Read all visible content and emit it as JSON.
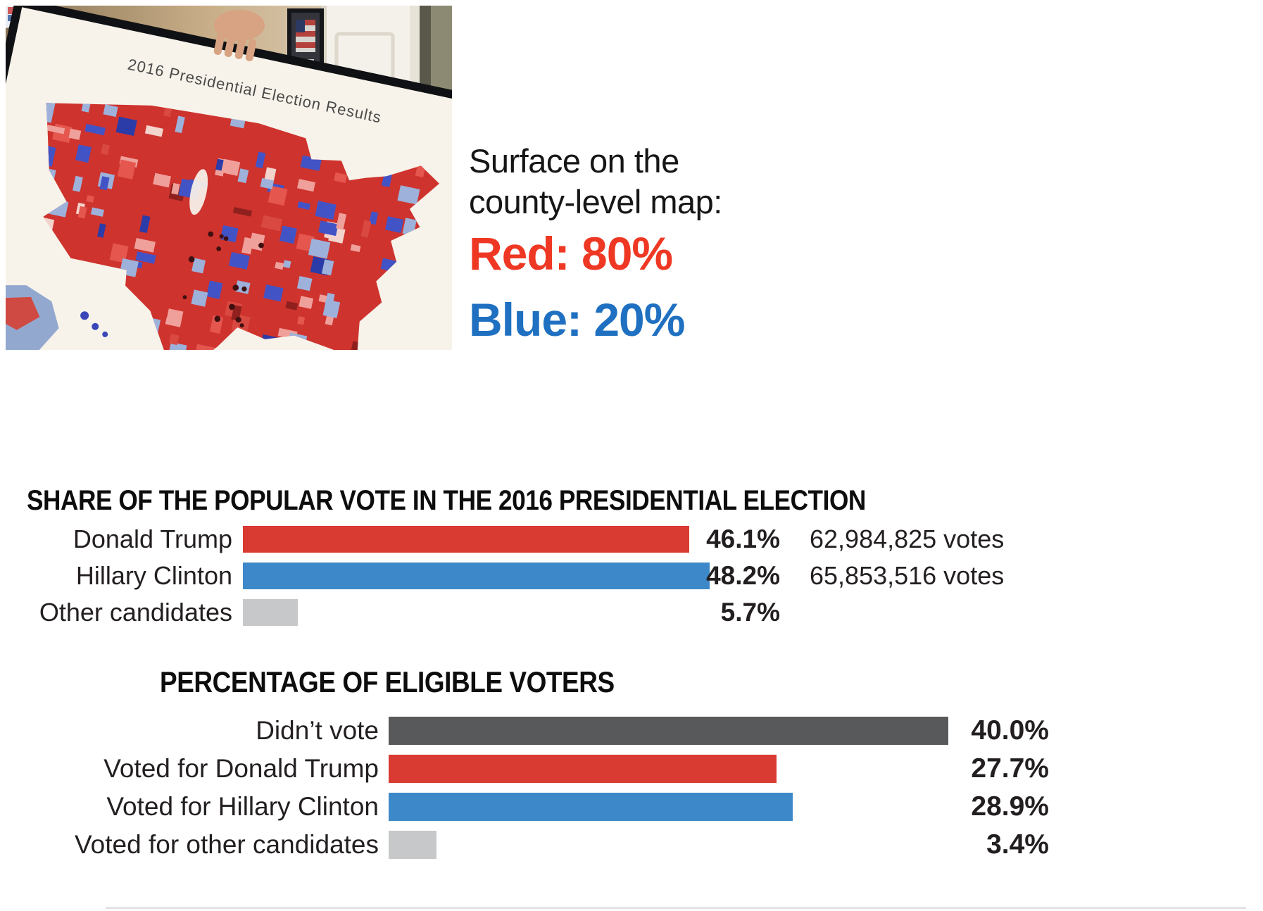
{
  "photo": {
    "poster_title": "2016 Presidential Election Results"
  },
  "annotation": {
    "line1": "Surface on the",
    "line2": "county-level map:",
    "red_label": "Red: 80%",
    "blue_label": "Blue: 20%",
    "red_color": "#ee3824",
    "blue_color": "#1f70c1"
  },
  "chart_data": [
    {
      "type": "bar",
      "orientation": "horizontal",
      "title": "SHARE OF THE POPULAR VOTE IN THE 2016 PRESIDENTIAL ELECTION",
      "categories": [
        "Donald Trump",
        "Hillary Clinton",
        "Other candidates"
      ],
      "values": [
        46.1,
        48.2,
        5.7
      ],
      "value_labels": [
        "46.1%",
        "48.2%",
        "5.7%"
      ],
      "extra_labels": [
        "62,984,825 votes",
        "65,853,516 votes",
        ""
      ],
      "bar_colors": [
        "#d93a32",
        "#3c88c8",
        "#c7c8ca"
      ],
      "xlim": [
        0,
        50
      ],
      "grid": false,
      "legend": "none"
    },
    {
      "type": "bar",
      "orientation": "horizontal",
      "title": "PERCENTAGE OF ELIGIBLE VOTERS",
      "categories": [
        "Didn’t vote",
        "Voted for Donald Trump",
        "Voted for Hillary Clinton",
        "Voted for other candidates"
      ],
      "values": [
        40.0,
        27.7,
        28.9,
        3.4
      ],
      "value_labels": [
        "40.0%",
        "27.7%",
        "28.9%",
        "3.4%"
      ],
      "extra_labels": [
        "",
        "",
        "",
        ""
      ],
      "bar_colors": [
        "#58595b",
        "#d93a32",
        "#3c88c8",
        "#c7c8ca"
      ],
      "xlim": [
        0,
        42
      ],
      "grid": false,
      "legend": "none"
    }
  ]
}
